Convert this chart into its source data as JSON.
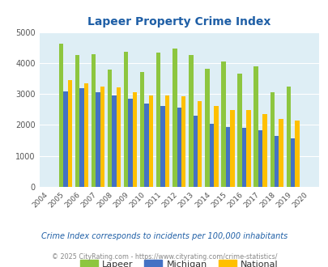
{
  "title": "Lapeer Property Crime Index",
  "years": [
    2004,
    2005,
    2006,
    2007,
    2008,
    2009,
    2010,
    2011,
    2012,
    2013,
    2014,
    2015,
    2016,
    2017,
    2018,
    2019,
    2020
  ],
  "lapeer": [
    null,
    4620,
    4260,
    4290,
    3780,
    4370,
    3700,
    4340,
    4470,
    4270,
    3820,
    4040,
    3660,
    3900,
    3060,
    3250,
    null
  ],
  "michigan": [
    null,
    3080,
    3200,
    3050,
    2940,
    2840,
    2700,
    2600,
    2550,
    2310,
    2050,
    1930,
    1920,
    1830,
    1640,
    1570,
    null
  ],
  "national": [
    null,
    3460,
    3340,
    3250,
    3220,
    3060,
    2960,
    2950,
    2920,
    2760,
    2600,
    2490,
    2470,
    2360,
    2200,
    2140,
    null
  ],
  "lapeer_color": "#8dc63f",
  "michigan_color": "#4472c4",
  "national_color": "#ffc000",
  "bg_color": "#deeef5",
  "ylim": [
    0,
    5000
  ],
  "yticks": [
    0,
    1000,
    2000,
    3000,
    4000,
    5000
  ],
  "legend_labels": [
    "Lapeer",
    "Michigan",
    "National"
  ],
  "footnote1": "Crime Index corresponds to incidents per 100,000 inhabitants",
  "footnote2": "© 2025 CityRating.com - https://www.cityrating.com/crime-statistics/",
  "title_color": "#1f5fa6",
  "footnote1_color": "#1f5fa6",
  "footnote2_color": "#888888",
  "bar_width": 0.27
}
